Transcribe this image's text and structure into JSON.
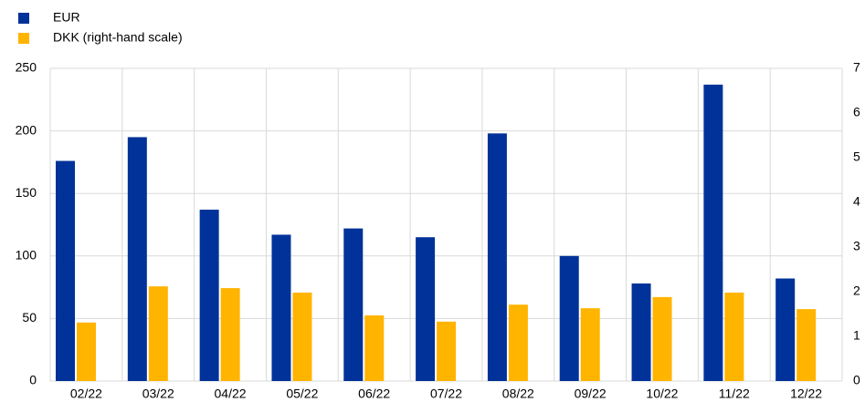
{
  "chart_data": {
    "type": "bar",
    "categories": [
      "02/22",
      "03/22",
      "04/22",
      "05/22",
      "06/22",
      "07/22",
      "08/22",
      "09/22",
      "10/22",
      "11/22",
      "12/22"
    ],
    "series": [
      {
        "name": "EUR",
        "color": "#003299",
        "values": [
          176,
          195,
          137,
          117,
          122,
          115,
          198,
          100,
          78,
          237,
          82
        ]
      },
      {
        "name": "DKK (right-hand scale)",
        "color": "#ffb400",
        "axis": "y2",
        "values": [
          1.31,
          2.12,
          2.08,
          1.98,
          1.47,
          1.33,
          1.71,
          1.63,
          1.88,
          1.98,
          1.61
        ]
      }
    ],
    "ylim": [
      0,
      250
    ],
    "yticks": [
      0,
      50,
      100,
      150,
      200,
      250
    ],
    "y2lim": [
      0,
      7
    ],
    "y2ticks": [
      0,
      1,
      2,
      3,
      4,
      5,
      6,
      7
    ],
    "grid": true,
    "legend": "top-left"
  }
}
